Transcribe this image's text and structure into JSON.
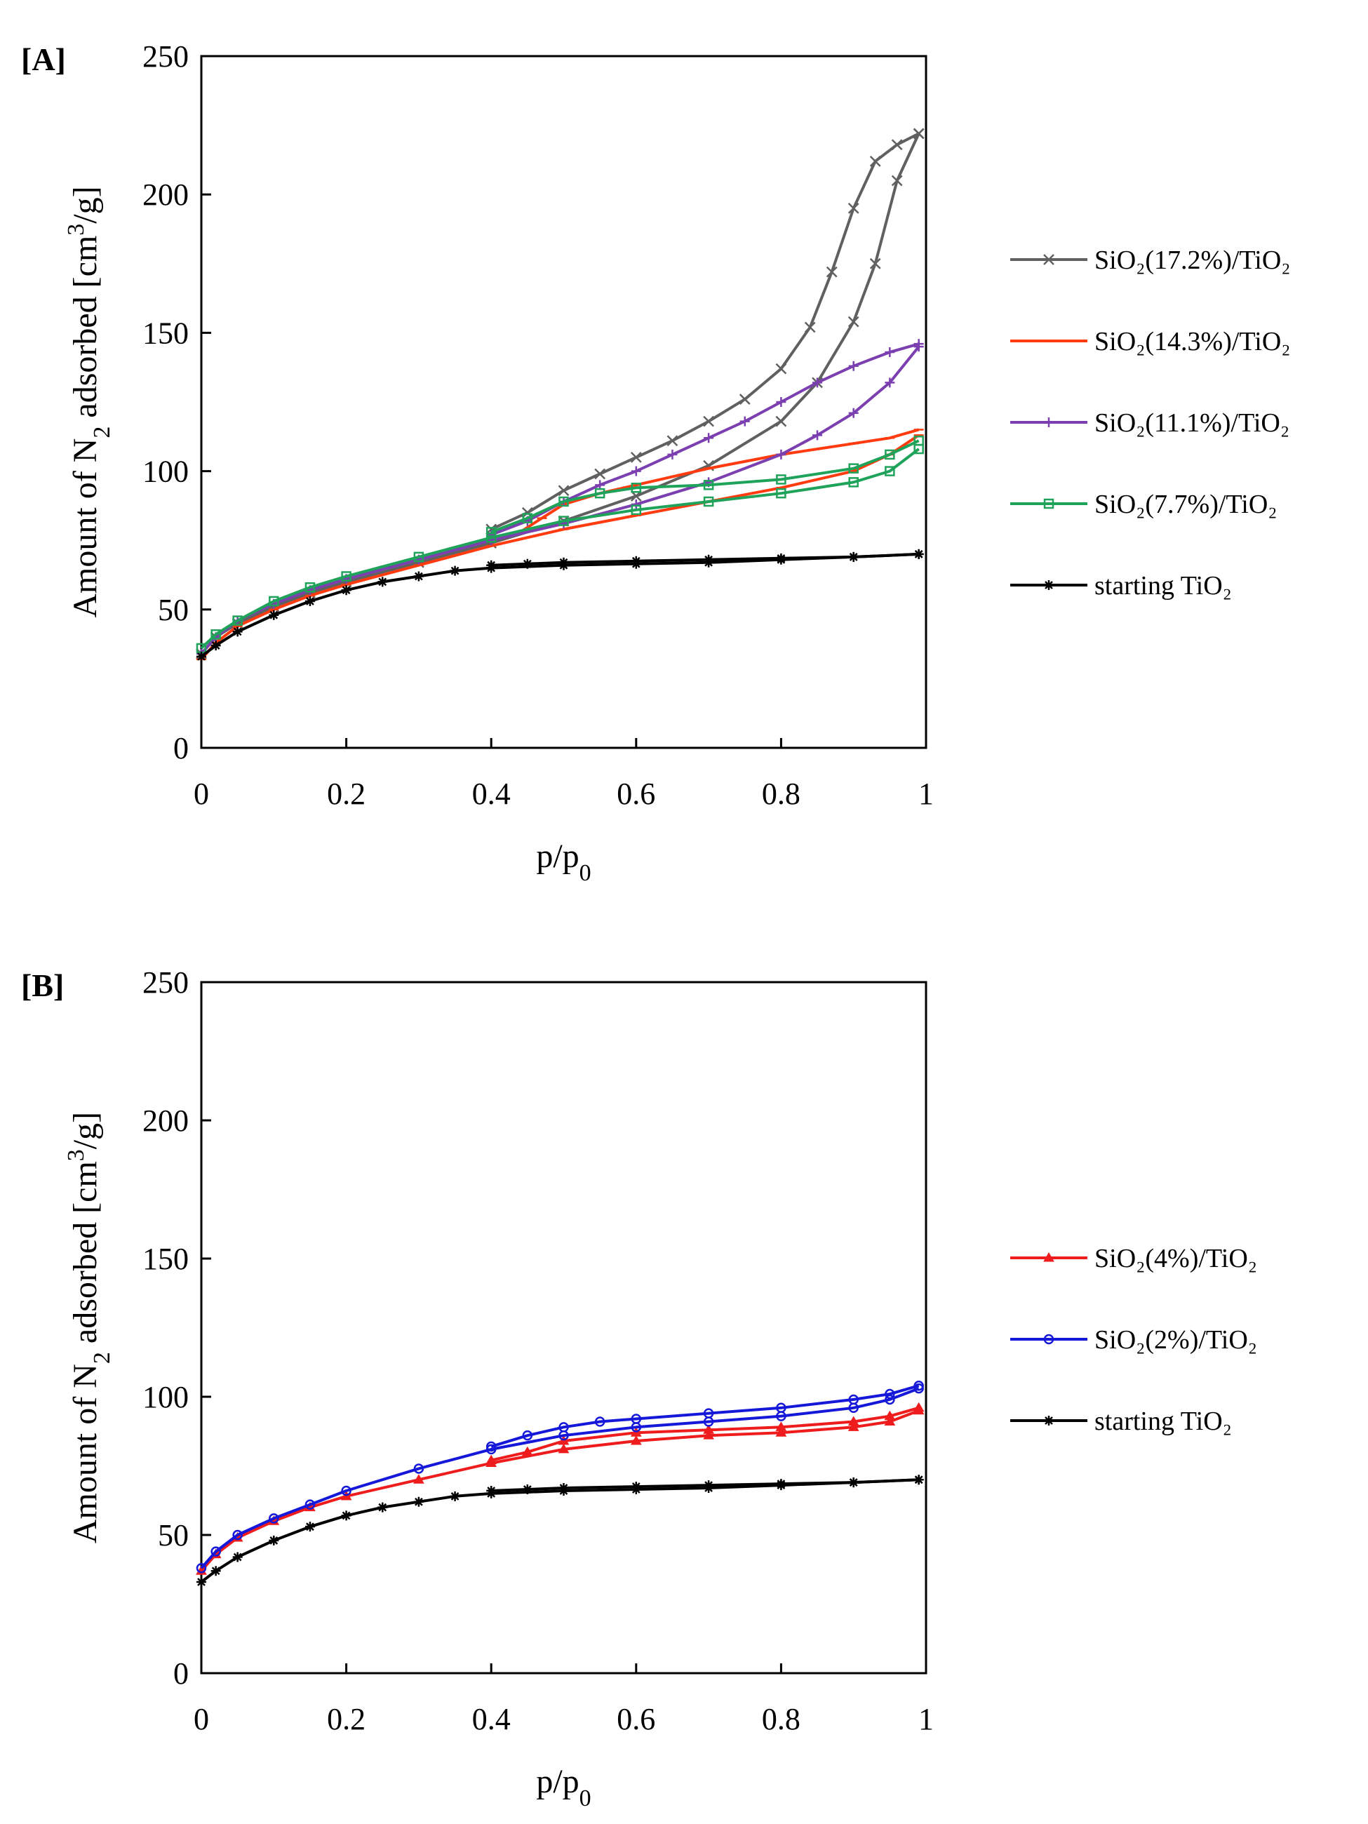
{
  "chart_data": [
    {
      "type": "line",
      "panel_label": "[A]",
      "xlabel": "p/p0",
      "ylabel": "Amount of N2 adsorbed [cm3/g]",
      "xlim": [
        0,
        1
      ],
      "ylim": [
        0,
        250
      ],
      "xticks": [
        "0",
        "0.2",
        "0.4",
        "0.6",
        "0.8",
        "1"
      ],
      "yticks": [
        "0",
        "50",
        "100",
        "150",
        "200",
        "250"
      ],
      "grid": false,
      "legend_position": "right",
      "series": [
        {
          "name": "SiO₂(17.2%)/TiO₂",
          "color": "#606060",
          "marker": "x",
          "adsorption": {
            "x": [
              0.0,
              0.02,
              0.05,
              0.1,
              0.15,
              0.2,
              0.3,
              0.4,
              0.5,
              0.6,
              0.7,
              0.8,
              0.85,
              0.9,
              0.93,
              0.96,
              0.99
            ],
            "y": [
              34,
              40,
              45,
              51,
              56,
              60,
              67,
              74,
              82,
              91,
              102,
              118,
              132,
              154,
              175,
              205,
              222
            ]
          },
          "desorption": {
            "x": [
              0.99,
              0.96,
              0.93,
              0.9,
              0.87,
              0.84,
              0.8,
              0.75,
              0.7,
              0.65,
              0.6,
              0.55,
              0.5,
              0.45,
              0.4
            ],
            "y": [
              222,
              218,
              212,
              195,
              172,
              152,
              137,
              126,
              118,
              111,
              105,
              99,
              93,
              85,
              79
            ]
          }
        },
        {
          "name": "SiO₂(14.3%)/TiO₂",
          "color": "#ff3b0f",
          "marker": "dash",
          "adsorption": {
            "x": [
              0.0,
              0.02,
              0.05,
              0.1,
              0.15,
              0.2,
              0.3,
              0.4,
              0.5,
              0.6,
              0.7,
              0.8,
              0.9,
              0.95,
              0.99
            ],
            "y": [
              32,
              38,
              44,
              50,
              55,
              59,
              66,
              73,
              79,
              84,
              89,
              94,
              100,
              106,
              113
            ]
          },
          "desorption": {
            "x": [
              0.99,
              0.95,
              0.9,
              0.8,
              0.7,
              0.6,
              0.55,
              0.5,
              0.47,
              0.44
            ],
            "y": [
              115,
              112,
              110,
              106,
              101,
              95,
              92,
              88,
              83,
              78
            ]
          }
        },
        {
          "name": "SiO₂(11.1%)/TiO₂",
          "color": "#7b3fb0",
          "marker": "plus",
          "adsorption": {
            "x": [
              0.0,
              0.02,
              0.05,
              0.1,
              0.15,
              0.2,
              0.3,
              0.4,
              0.5,
              0.6,
              0.7,
              0.8,
              0.85,
              0.9,
              0.95,
              0.99
            ],
            "y": [
              34,
              40,
              46,
              52,
              57,
              61,
              68,
              75,
              81,
              88,
              96,
              106,
              113,
              121,
              132,
              145
            ]
          },
          "desorption": {
            "x": [
              0.99,
              0.95,
              0.9,
              0.85,
              0.8,
              0.75,
              0.7,
              0.65,
              0.6,
              0.55,
              0.5,
              0.45,
              0.4
            ],
            "y": [
              146,
              143,
              138,
              132,
              125,
              118,
              112,
              106,
              100,
              95,
              89,
              82,
              77
            ]
          }
        },
        {
          "name": "SiO₂(7.7%)/TiO₂",
          "color": "#1fa35a",
          "marker": "square",
          "adsorption": {
            "x": [
              0.0,
              0.02,
              0.05,
              0.1,
              0.15,
              0.2,
              0.3,
              0.4,
              0.5,
              0.6,
              0.7,
              0.8,
              0.9,
              0.95,
              0.99
            ],
            "y": [
              36,
              41,
              46,
              53,
              58,
              62,
              69,
              76,
              82,
              86,
              89,
              92,
              96,
              100,
              108
            ]
          },
          "desorption": {
            "x": [
              0.99,
              0.95,
              0.9,
              0.8,
              0.7,
              0.6,
              0.55,
              0.5,
              0.45,
              0.4
            ],
            "y": [
              111,
              106,
              101,
              97,
              95,
              94,
              92,
              89,
              83,
              78
            ]
          }
        },
        {
          "name": "starting TiO₂",
          "color": "#000000",
          "marker": "asterisk",
          "adsorption": {
            "x": [
              0.0,
              0.02,
              0.05,
              0.1,
              0.15,
              0.2,
              0.25,
              0.3,
              0.35,
              0.4,
              0.5,
              0.6,
              0.7,
              0.8,
              0.9,
              0.99
            ],
            "y": [
              33,
              37,
              42,
              48,
              53,
              57,
              60,
              62,
              64,
              65,
              66,
              66.5,
              67,
              68,
              69,
              70
            ]
          },
          "desorption": {
            "x": [
              0.99,
              0.9,
              0.8,
              0.7,
              0.6,
              0.5,
              0.45,
              0.4
            ],
            "y": [
              70,
              69,
              68.5,
              68,
              67.5,
              67,
              66.5,
              66
            ]
          }
        }
      ]
    },
    {
      "type": "line",
      "panel_label": "[B]",
      "xlabel": "p/p0",
      "ylabel": "Amount of N2 adsorbed [cm3/g]",
      "xlim": [
        0,
        1
      ],
      "ylim": [
        0,
        250
      ],
      "xticks": [
        "0",
        "0.2",
        "0.4",
        "0.6",
        "0.8",
        "1"
      ],
      "yticks": [
        "0",
        "50",
        "100",
        "150",
        "200",
        "250"
      ],
      "grid": false,
      "legend_position": "right",
      "series": [
        {
          "name": "SiO₂(4%)/TiO₂",
          "color": "#ee1c1c",
          "marker": "triangle",
          "adsorption": {
            "x": [
              0.0,
              0.02,
              0.05,
              0.1,
              0.15,
              0.2,
              0.3,
              0.4,
              0.5,
              0.6,
              0.7,
              0.8,
              0.9,
              0.95,
              0.99
            ],
            "y": [
              37,
              43,
              49,
              55,
              60,
              64,
              70,
              76,
              81,
              84,
              86,
              87,
              89,
              91,
              95
            ]
          },
          "desorption": {
            "x": [
              0.99,
              0.95,
              0.9,
              0.8,
              0.7,
              0.6,
              0.5,
              0.45,
              0.4
            ],
            "y": [
              96,
              93,
              91,
              89,
              88,
              87,
              84,
              80,
              77
            ]
          }
        },
        {
          "name": "SiO₂(2%)/TiO₂",
          "color": "#1518d8",
          "marker": "circle",
          "adsorption": {
            "x": [
              0.0,
              0.02,
              0.05,
              0.1,
              0.15,
              0.2,
              0.3,
              0.4,
              0.5,
              0.6,
              0.7,
              0.8,
              0.9,
              0.95,
              0.99
            ],
            "y": [
              38,
              44,
              50,
              56,
              61,
              66,
              74,
              81,
              86,
              89,
              91,
              93,
              96,
              99,
              103
            ]
          },
          "desorption": {
            "x": [
              0.99,
              0.95,
              0.9,
              0.8,
              0.7,
              0.6,
              0.55,
              0.5,
              0.45,
              0.4
            ],
            "y": [
              104,
              101,
              99,
              96,
              94,
              92,
              91,
              89,
              86,
              82
            ]
          }
        },
        {
          "name": "starting TiO₂",
          "color": "#000000",
          "marker": "asterisk",
          "adsorption": {
            "x": [
              0.0,
              0.02,
              0.05,
              0.1,
              0.15,
              0.2,
              0.25,
              0.3,
              0.35,
              0.4,
              0.5,
              0.6,
              0.7,
              0.8,
              0.9,
              0.99
            ],
            "y": [
              33,
              37,
              42,
              48,
              53,
              57,
              60,
              62,
              64,
              65,
              66,
              66.5,
              67,
              68,
              69,
              70
            ]
          },
          "desorption": {
            "x": [
              0.99,
              0.9,
              0.8,
              0.7,
              0.6,
              0.5,
              0.45,
              0.4
            ],
            "y": [
              70,
              69,
              68.5,
              68,
              67.5,
              67,
              66.5,
              66
            ]
          }
        }
      ]
    }
  ]
}
